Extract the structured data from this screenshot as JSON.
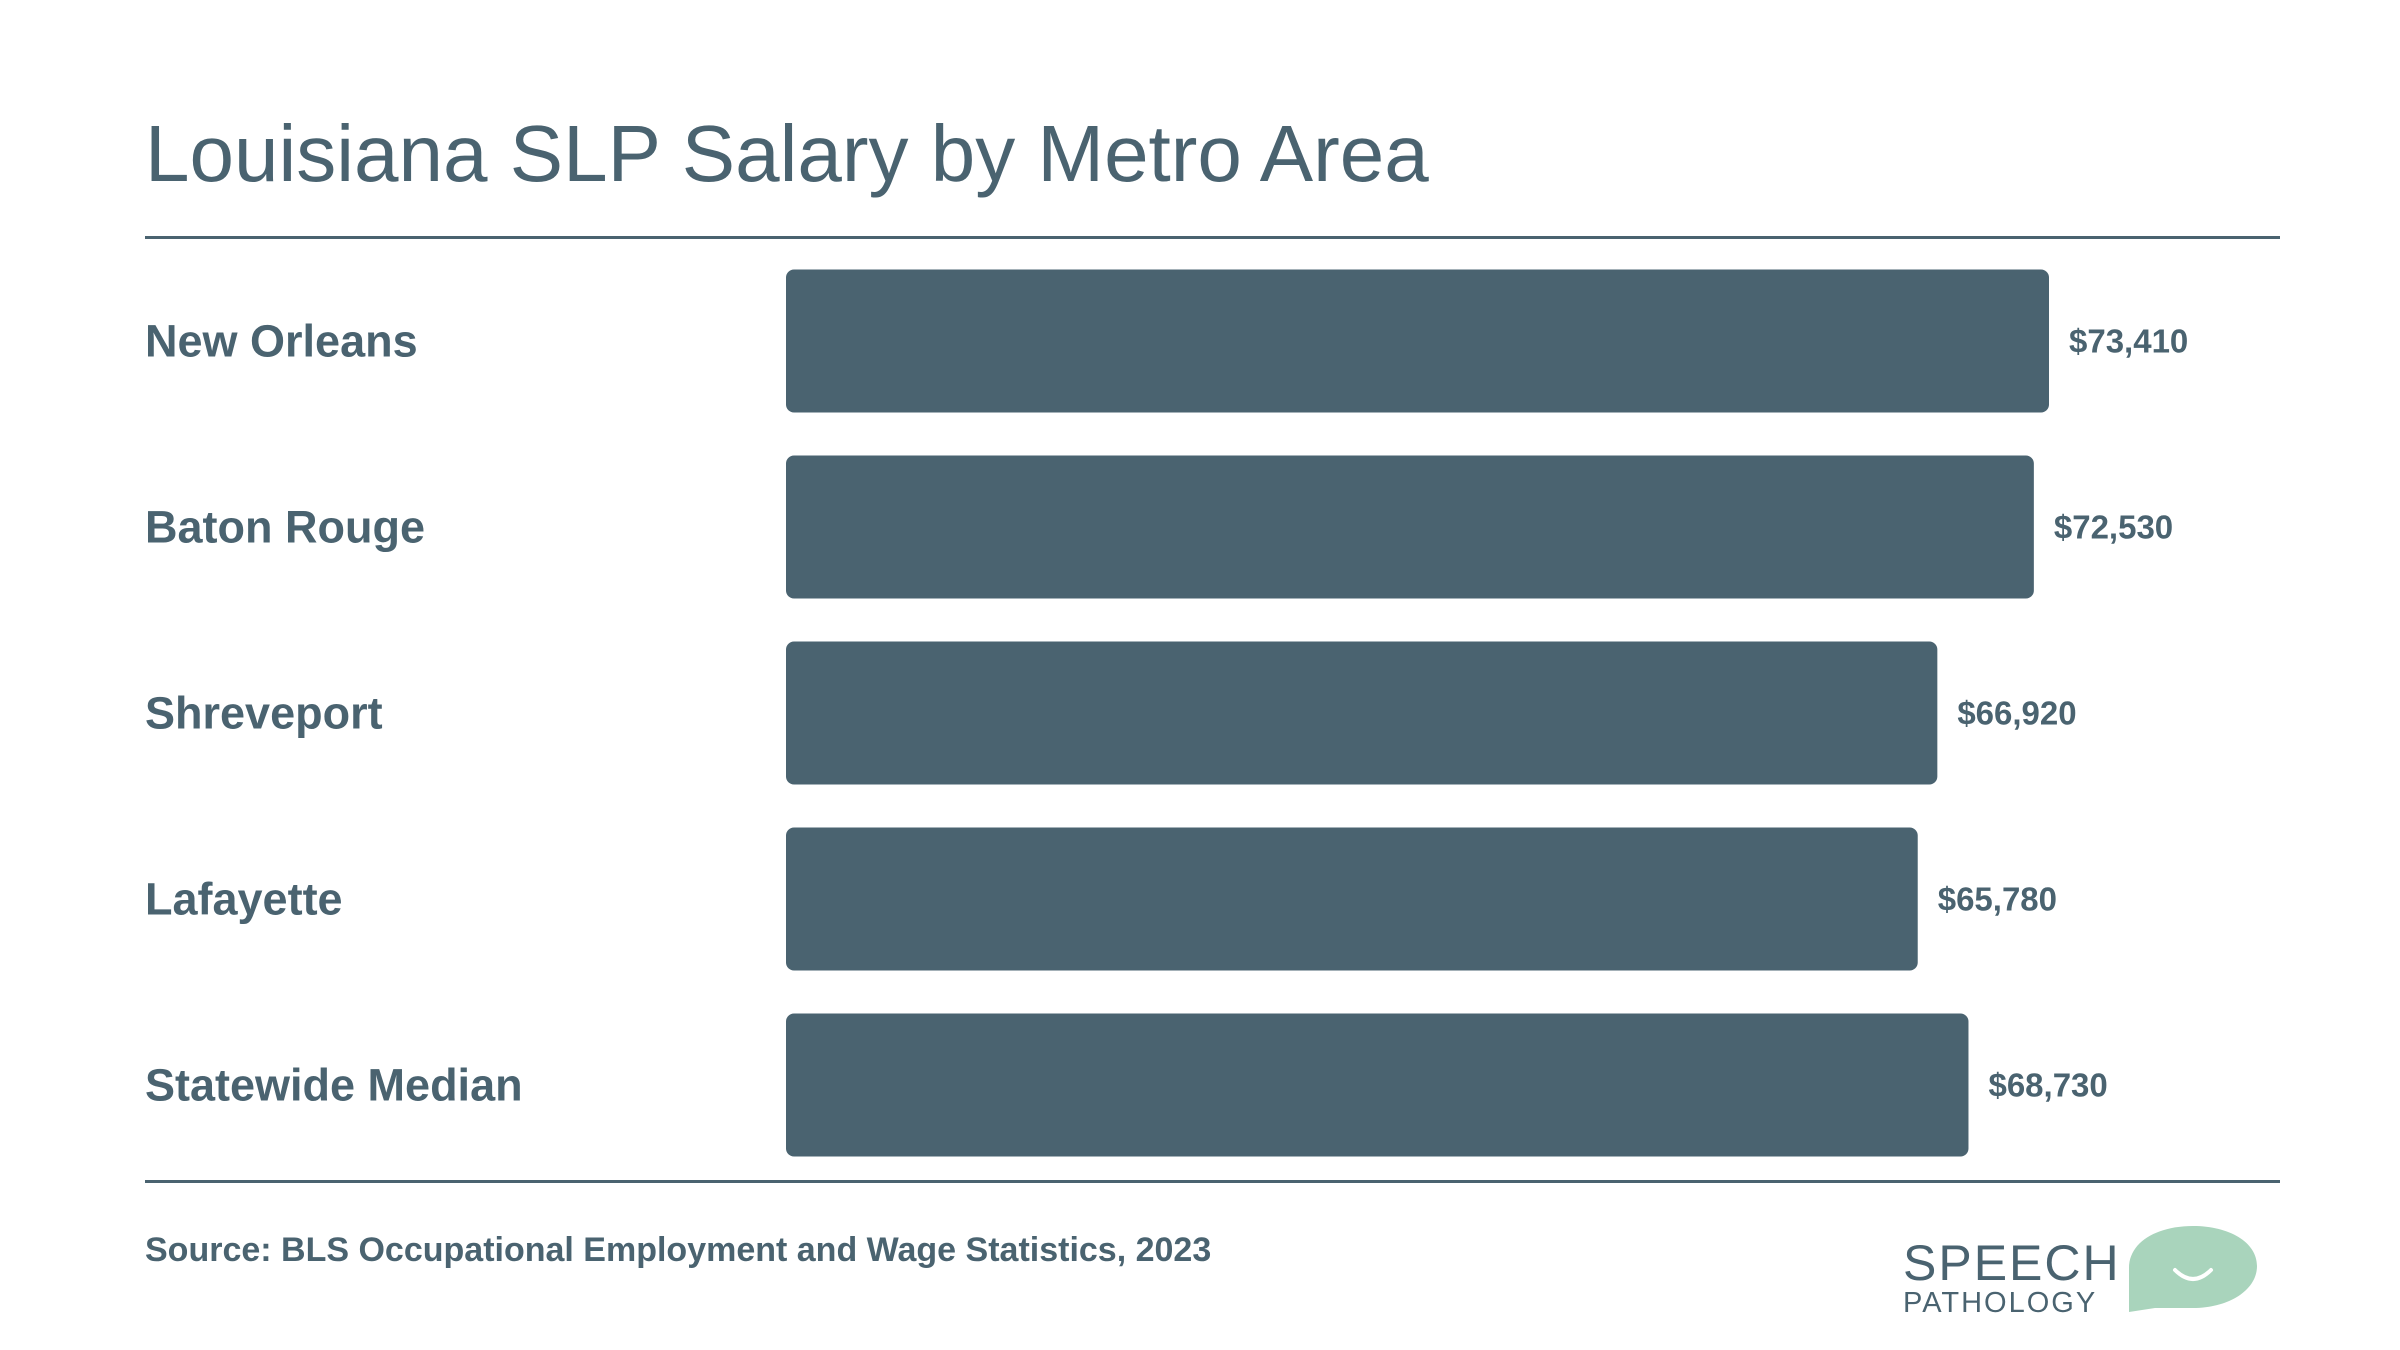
{
  "title": "Louisiana SLP Salary by Metro Area",
  "source": "Source: BLS Occupational Employment and Wage Statistics, 2023",
  "logo": {
    "line1": "SPEECH",
    "line2": "PATHOLOGY"
  },
  "colors": {
    "bar": "#4a6370",
    "text": "#4a6370",
    "logo_bubble": "#a9d4bc"
  },
  "chart_data": {
    "type": "bar",
    "orientation": "horizontal",
    "categories": [
      "New Orleans",
      "Baton Rouge",
      "Shreveport",
      "Lafayette",
      "Statewide Median"
    ],
    "values": [
      73410,
      72530,
      66920,
      65780,
      68730
    ],
    "value_labels": [
      "$73,410",
      "$72,530",
      "$66,920",
      "$65,780",
      "$68,730"
    ],
    "title": "Louisiana SLP Salary by Metro Area",
    "xlabel": "",
    "ylabel": "",
    "xlim": [
      0,
      73410
    ],
    "grid": false,
    "legend": "none"
  }
}
